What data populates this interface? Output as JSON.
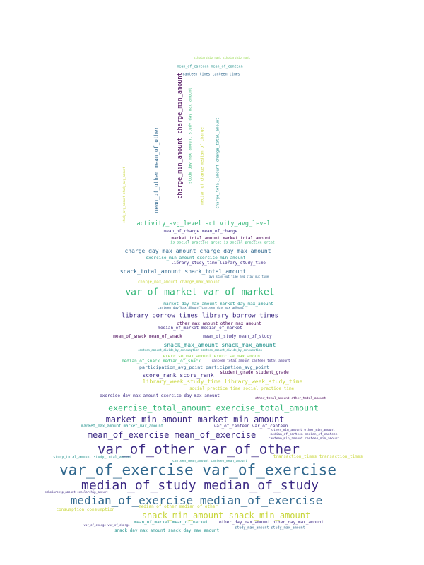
{
  "palette": {
    "dark_purple": "#440154",
    "indigo": "#3b2883",
    "blue": "#31688e",
    "teal": "#21918c",
    "green": "#35b779",
    "lime": "#90d743",
    "yellow": "#c8d63a"
  },
  "words": [
    {
      "text": "scholarship_rank scholarship_rank",
      "color": "lime"
    },
    {
      "text": "mean_of_canteen mean_of_canteen",
      "color": "teal"
    },
    {
      "text": "canteen_times canteen_times",
      "color": "blue"
    },
    {
      "text": "charge_min_amount charge_min_amount",
      "color": "dark_purple"
    },
    {
      "text": "study_day_max_amount study_day_max_amount",
      "color": "green"
    },
    {
      "text": "mean_of_other mean_of_other",
      "color": "blue"
    },
    {
      "text": "median_of_charge median_of_charge",
      "color": "yellow"
    },
    {
      "text": "charge_total_amount charge_total_amount",
      "color": "teal"
    },
    {
      "text": "study_avg_amount study_avg_amount",
      "color": "yellow"
    },
    {
      "text": "activity_avg_level activity_avg_level",
      "color": "green"
    },
    {
      "text": "mean_of_charge mean_of_charge",
      "color": "indigo"
    },
    {
      "text": "market_total_amount market_total_amount",
      "color": "dark_purple"
    },
    {
      "text": "is_social_practice_great is_social_practice_great",
      "color": "green"
    },
    {
      "text": "charge_day_max_amount charge_day_max_amount",
      "color": "blue"
    },
    {
      "text": "exercise_min_amount exercise_min_amount",
      "color": "teal"
    },
    {
      "text": "library_study_time library_study_time",
      "color": "indigo"
    },
    {
      "text": "snack_total_amount snack_total_amount",
      "color": "blue"
    },
    {
      "text": "avg_stay_out_time avg_stay_out_time",
      "color": "blue"
    },
    {
      "text": "charge_max_amount charge_max_amount",
      "color": "yellow"
    },
    {
      "text": "var_of_market var_of_market",
      "color": "green"
    },
    {
      "text": "market_day_max_amount market_day_max_amount",
      "color": "teal"
    },
    {
      "text": "canteen_day_max_amount canteen_day_max_amount",
      "color": "blue"
    },
    {
      "text": "library_borrow_times library_borrow_times",
      "color": "indigo"
    },
    {
      "text": "other_max_amount other_max_amount",
      "color": "dark_purple"
    },
    {
      "text": "median_of_market median_of_market",
      "color": "indigo"
    },
    {
      "text": "mean_of_snack mean_of_snack",
      "color": "dark_purple"
    },
    {
      "text": "mean_of_study mean_of_study",
      "color": "indigo"
    },
    {
      "text": "snack_max_amount snack_max_amount",
      "color": "teal"
    },
    {
      "text": "canteen_amount_divide_by_consumption canteen_amount_divide_by_consumption",
      "color": "teal"
    },
    {
      "text": "exercise_max_amount exercise_max_amount",
      "color": "lime"
    },
    {
      "text": "median_of_snack median_of_snack",
      "color": "green"
    },
    {
      "text": "canteen_total_amount canteen_total_amount",
      "color": "indigo"
    },
    {
      "text": "participation_avg_point participation_avg_point",
      "color": "blue"
    },
    {
      "text": "score_rank score_rank",
      "color": "indigo"
    },
    {
      "text": "student_grade student_grade",
      "color": "dark_purple"
    },
    {
      "text": "library_week_study_time library_week_study_time",
      "color": "yellow"
    },
    {
      "text": "social_practice_time social_practice_time",
      "color": "yellow"
    },
    {
      "text": "exercise_day_max_amount exercise_day_max_amount",
      "color": "indigo"
    },
    {
      "text": "other_total_amount other_total_amount",
      "color": "dark_purple"
    },
    {
      "text": "exercise_total_amount exercise_total_amount",
      "color": "green"
    },
    {
      "text": "market_min_amount market_min_amount",
      "color": "indigo"
    },
    {
      "text": "market_max_amount market_max_amount",
      "color": "teal"
    },
    {
      "text": "var_of_canteen var_of_canteen",
      "color": "indigo"
    },
    {
      "text": "mean_of_exercise mean_of_exercise",
      "color": "indigo"
    },
    {
      "text": "other_min_amount other_min_amount",
      "color": "indigo"
    },
    {
      "text": "median_of_canteen median_of_canteen",
      "color": "indigo"
    },
    {
      "text": "canteen_min_amount canteen_min_amount",
      "color": "indigo"
    },
    {
      "text": "var_of_other var_of_other",
      "color": "indigo"
    },
    {
      "text": "study_total_amount study_total_amount",
      "color": "teal"
    },
    {
      "text": "transaction_times transaction_times",
      "color": "yellow"
    },
    {
      "text": "canteen_mean_amount canteen_mean_amount",
      "color": "teal"
    },
    {
      "text": "var_of_exercise var_of_exercise",
      "color": "blue"
    },
    {
      "text": "median_of_study median_of_study",
      "color": "indigo"
    },
    {
      "text": "scholarship_amount scholarship_amount",
      "color": "indigo"
    },
    {
      "text": "median_of_exercise median_of_exercise",
      "color": "blue"
    },
    {
      "text": "consumption consumption",
      "color": "yellow"
    },
    {
      "text": "median_of_other median_of_other",
      "color": "yellow"
    },
    {
      "text": "snack_min_amount snack_min_amount",
      "color": "yellow"
    },
    {
      "text": "mean_of_market mean_of_market",
      "color": "teal"
    },
    {
      "text": "other_day_max_amount other_day_max_amount",
      "color": "indigo"
    },
    {
      "text": "var_of_charge var_of_charge",
      "color": "indigo"
    },
    {
      "text": "study_max_amount study_max_amount",
      "color": "blue"
    },
    {
      "text": "snack_day_max_amount snack_day_max_amount",
      "color": "teal"
    }
  ]
}
